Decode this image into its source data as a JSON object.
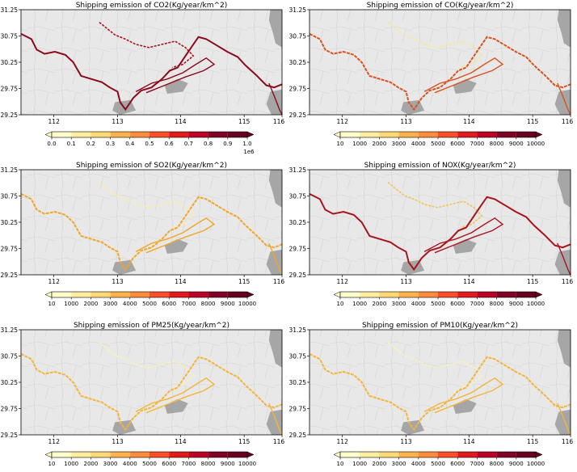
{
  "figure": {
    "panels": [
      {
        "title": "Shipping emission of CO2(Kg/year/km^2)",
        "xticks": [
          "112",
          "113",
          "114",
          "115",
          "116"
        ],
        "yticks": [
          "31.25",
          "30.75",
          "30.25",
          "29.75",
          "29.25"
        ],
        "colorbar": {
          "ticks": [
            "0.0",
            "0.1",
            "0.2",
            "0.3",
            "0.4",
            "0.5",
            "0.6",
            "0.7",
            "0.8",
            "0.9",
            "1.0"
          ],
          "offset_text": "1e6"
        },
        "river_color": "#8b0a1a",
        "tributary_color": "#a8141e"
      },
      {
        "title": "Shipping emission of CO(Kg/year/km^2)",
        "xticks": [
          "112",
          "113",
          "114",
          "115",
          "116"
        ],
        "yticks": [
          "31.25",
          "30.75",
          "30.25",
          "29.75",
          "29.25"
        ],
        "colorbar": {
          "ticks": [
            "10",
            "1000",
            "2000",
            "3000",
            "4000",
            "5000",
            "6000",
            "7000",
            "8000",
            "9000",
            "10000"
          ],
          "offset_text": ""
        },
        "river_color": "#d8521f",
        "tributary_color": "#f8e79a"
      },
      {
        "title": "Shipping emission of SO2(Kg/year/km^2)",
        "xticks": [
          "112",
          "113",
          "114",
          "115",
          "116"
        ],
        "yticks": [
          "31.25",
          "30.75",
          "30.25",
          "29.75",
          "29.25"
        ],
        "colorbar": {
          "ticks": [
            "10",
            "1000",
            "2000",
            "3000",
            "4000",
            "5000",
            "6000",
            "7000",
            "8000",
            "9000",
            "10000"
          ],
          "offset_text": ""
        },
        "river_color": "#f0a628",
        "tributary_color": "#fbeea8"
      },
      {
        "title": "Shipping emission of NOX(Kg/year/km^2)",
        "xticks": [
          "112",
          "113",
          "114",
          "115",
          "116"
        ],
        "yticks": [
          "31.25",
          "30.75",
          "30.25",
          "29.75",
          "29.25"
        ],
        "colorbar": {
          "ticks": [
            "10",
            "1000",
            "2000",
            "3000",
            "4000",
            "5000",
            "6000",
            "7000",
            "8000",
            "9000",
            "10000"
          ],
          "offset_text": ""
        },
        "river_color": "#a7141e",
        "tributary_color": "#f4c25a"
      },
      {
        "title": "Shipping emission of PM25(Kg/year/km^2)",
        "xticks": [
          "112",
          "113",
          "114",
          "115",
          "116"
        ],
        "yticks": [
          "31.25",
          "30.75",
          "30.25",
          "29.75",
          "29.25"
        ],
        "colorbar": {
          "ticks": [
            "10",
            "1000",
            "2000",
            "3000",
            "4000",
            "5000",
            "6000",
            "7000",
            "8000",
            "9000",
            "10000"
          ],
          "offset_text": ""
        },
        "river_color": "#f3b53a",
        "tributary_color": "#fcf1b5"
      },
      {
        "title": "Shipping emission of PM10(Kg/year/km^2)",
        "xticks": [
          "112",
          "113",
          "114",
          "115",
          "116"
        ],
        "yticks": [
          "31.25",
          "30.75",
          "30.25",
          "29.75",
          "29.25"
        ],
        "colorbar": {
          "ticks": [
            "10",
            "1000",
            "2000",
            "3000",
            "4000",
            "5000",
            "6000",
            "7000",
            "8000",
            "9000",
            "10000"
          ],
          "offset_text": ""
        },
        "river_color": "#f3b53a",
        "tributary_color": "#fcf1b5"
      }
    ],
    "colormap": [
      "#ffffcc",
      "#ffeda0",
      "#fed976",
      "#feb24c",
      "#fd8d3c",
      "#fc4e2a",
      "#e31a1c",
      "#bd0026",
      "#800026",
      "#67001f"
    ],
    "map_background": "#e8e8e8",
    "terrain_color": "#9a9a9a"
  },
  "chart_data": [
    {
      "type": "heatmap",
      "title": "Shipping emission of CO2(Kg/year/km^2)",
      "xlim": [
        111.3,
        116.2
      ],
      "ylim": [
        29.25,
        31.25
      ],
      "colorbar_range": [
        0,
        1000000
      ],
      "colorbar_offset": "1e6"
    },
    {
      "type": "heatmap",
      "title": "Shipping emission of CO(Kg/year/km^2)",
      "xlim": [
        111.3,
        116.2
      ],
      "ylim": [
        29.25,
        31.25
      ],
      "colorbar_range": [
        10,
        10000
      ]
    },
    {
      "type": "heatmap",
      "title": "Shipping emission of SO2(Kg/year/km^2)",
      "xlim": [
        111.3,
        116.2
      ],
      "ylim": [
        29.25,
        31.25
      ],
      "colorbar_range": [
        10,
        10000
      ]
    },
    {
      "type": "heatmap",
      "title": "Shipping emission of NOX(Kg/year/km^2)",
      "xlim": [
        111.3,
        116.2
      ],
      "ylim": [
        29.25,
        31.25
      ],
      "colorbar_range": [
        10,
        10000
      ]
    },
    {
      "type": "heatmap",
      "title": "Shipping emission of PM25(Kg/year/km^2)",
      "xlim": [
        111.3,
        116.2
      ],
      "ylim": [
        29.25,
        31.25
      ],
      "colorbar_range": [
        10,
        10000
      ]
    },
    {
      "type": "heatmap",
      "title": "Shipping emission of PM10(Kg/year/km^2)",
      "xlim": [
        111.3,
        116.2
      ],
      "ylim": [
        29.25,
        31.25
      ],
      "colorbar_range": [
        10,
        10000
      ]
    }
  ]
}
